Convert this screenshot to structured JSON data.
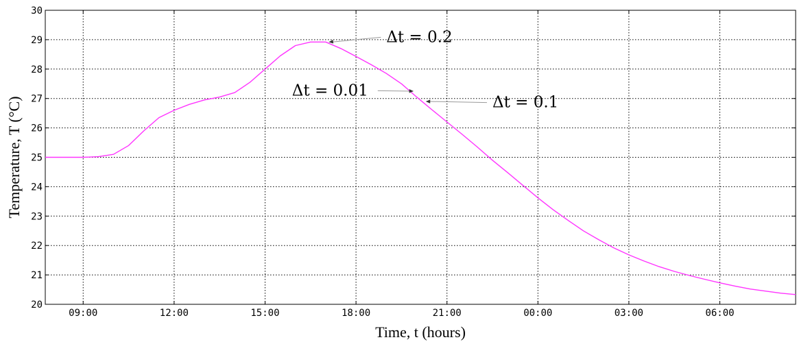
{
  "chart_data": {
    "type": "line",
    "xlabel": "Time, t (hours)",
    "ylabel": "Temperature, T (°C)",
    "x_ticks": [
      {
        "h": 9,
        "label": "09:00"
      },
      {
        "h": 12,
        "label": "12:00"
      },
      {
        "h": 15,
        "label": "15:00"
      },
      {
        "h": 18,
        "label": "18:00"
      },
      {
        "h": 21,
        "label": "21:00"
      },
      {
        "h": 24,
        "label": "00:00"
      },
      {
        "h": 27,
        "label": "03:00"
      },
      {
        "h": 30,
        "label": "06:00"
      }
    ],
    "y_ticks": [
      20,
      21,
      22,
      23,
      24,
      25,
      26,
      27,
      28,
      29,
      30
    ],
    "xlim": [
      7.75,
      32.5
    ],
    "ylim": [
      20,
      30
    ],
    "grid": true,
    "series": [
      {
        "color": "#ff33ff",
        "x": [
          7.75,
          8.5,
          9.0,
          9.5,
          10.0,
          10.5,
          11.0,
          11.5,
          12.0,
          12.5,
          13.0,
          13.5,
          14.0,
          14.5,
          15.0,
          15.5,
          16.0,
          16.5,
          17.0,
          17.5,
          18.0,
          18.5,
          19.0,
          19.5,
          20.0,
          20.5,
          21.0,
          21.5,
          22.0,
          22.5,
          23.0,
          23.5,
          24.0,
          24.5,
          25.0,
          25.5,
          26.0,
          26.5,
          27.0,
          27.5,
          28.0,
          28.5,
          29.0,
          29.5,
          30.0,
          30.5,
          31.0,
          31.5,
          32.0,
          32.5
        ],
        "y": [
          25.0,
          25.0,
          25.0,
          25.02,
          25.1,
          25.4,
          25.9,
          26.35,
          26.6,
          26.8,
          26.95,
          27.05,
          27.2,
          27.55,
          28.0,
          28.45,
          28.8,
          28.92,
          28.92,
          28.7,
          28.43,
          28.15,
          27.85,
          27.5,
          27.05,
          26.62,
          26.2,
          25.78,
          25.35,
          24.9,
          24.48,
          24.05,
          23.62,
          23.22,
          22.85,
          22.5,
          22.2,
          21.92,
          21.68,
          21.47,
          21.28,
          21.12,
          20.98,
          20.85,
          20.73,
          20.62,
          20.52,
          20.45,
          20.38,
          20.33
        ]
      }
    ],
    "annotations": [
      {
        "label": "Δt = 0.2",
        "target": [
          17.1,
          28.92
        ],
        "text_at": [
          19.0,
          28.92
        ],
        "anchor": "start"
      },
      {
        "label": "Δt = 0.01",
        "target": [
          19.9,
          27.25
        ],
        "text_at": [
          18.4,
          27.1
        ],
        "anchor": "end"
      },
      {
        "label": "Δt = 0.1",
        "target": [
          20.3,
          26.9
        ],
        "text_at": [
          22.5,
          26.7
        ],
        "anchor": "start"
      }
    ]
  }
}
